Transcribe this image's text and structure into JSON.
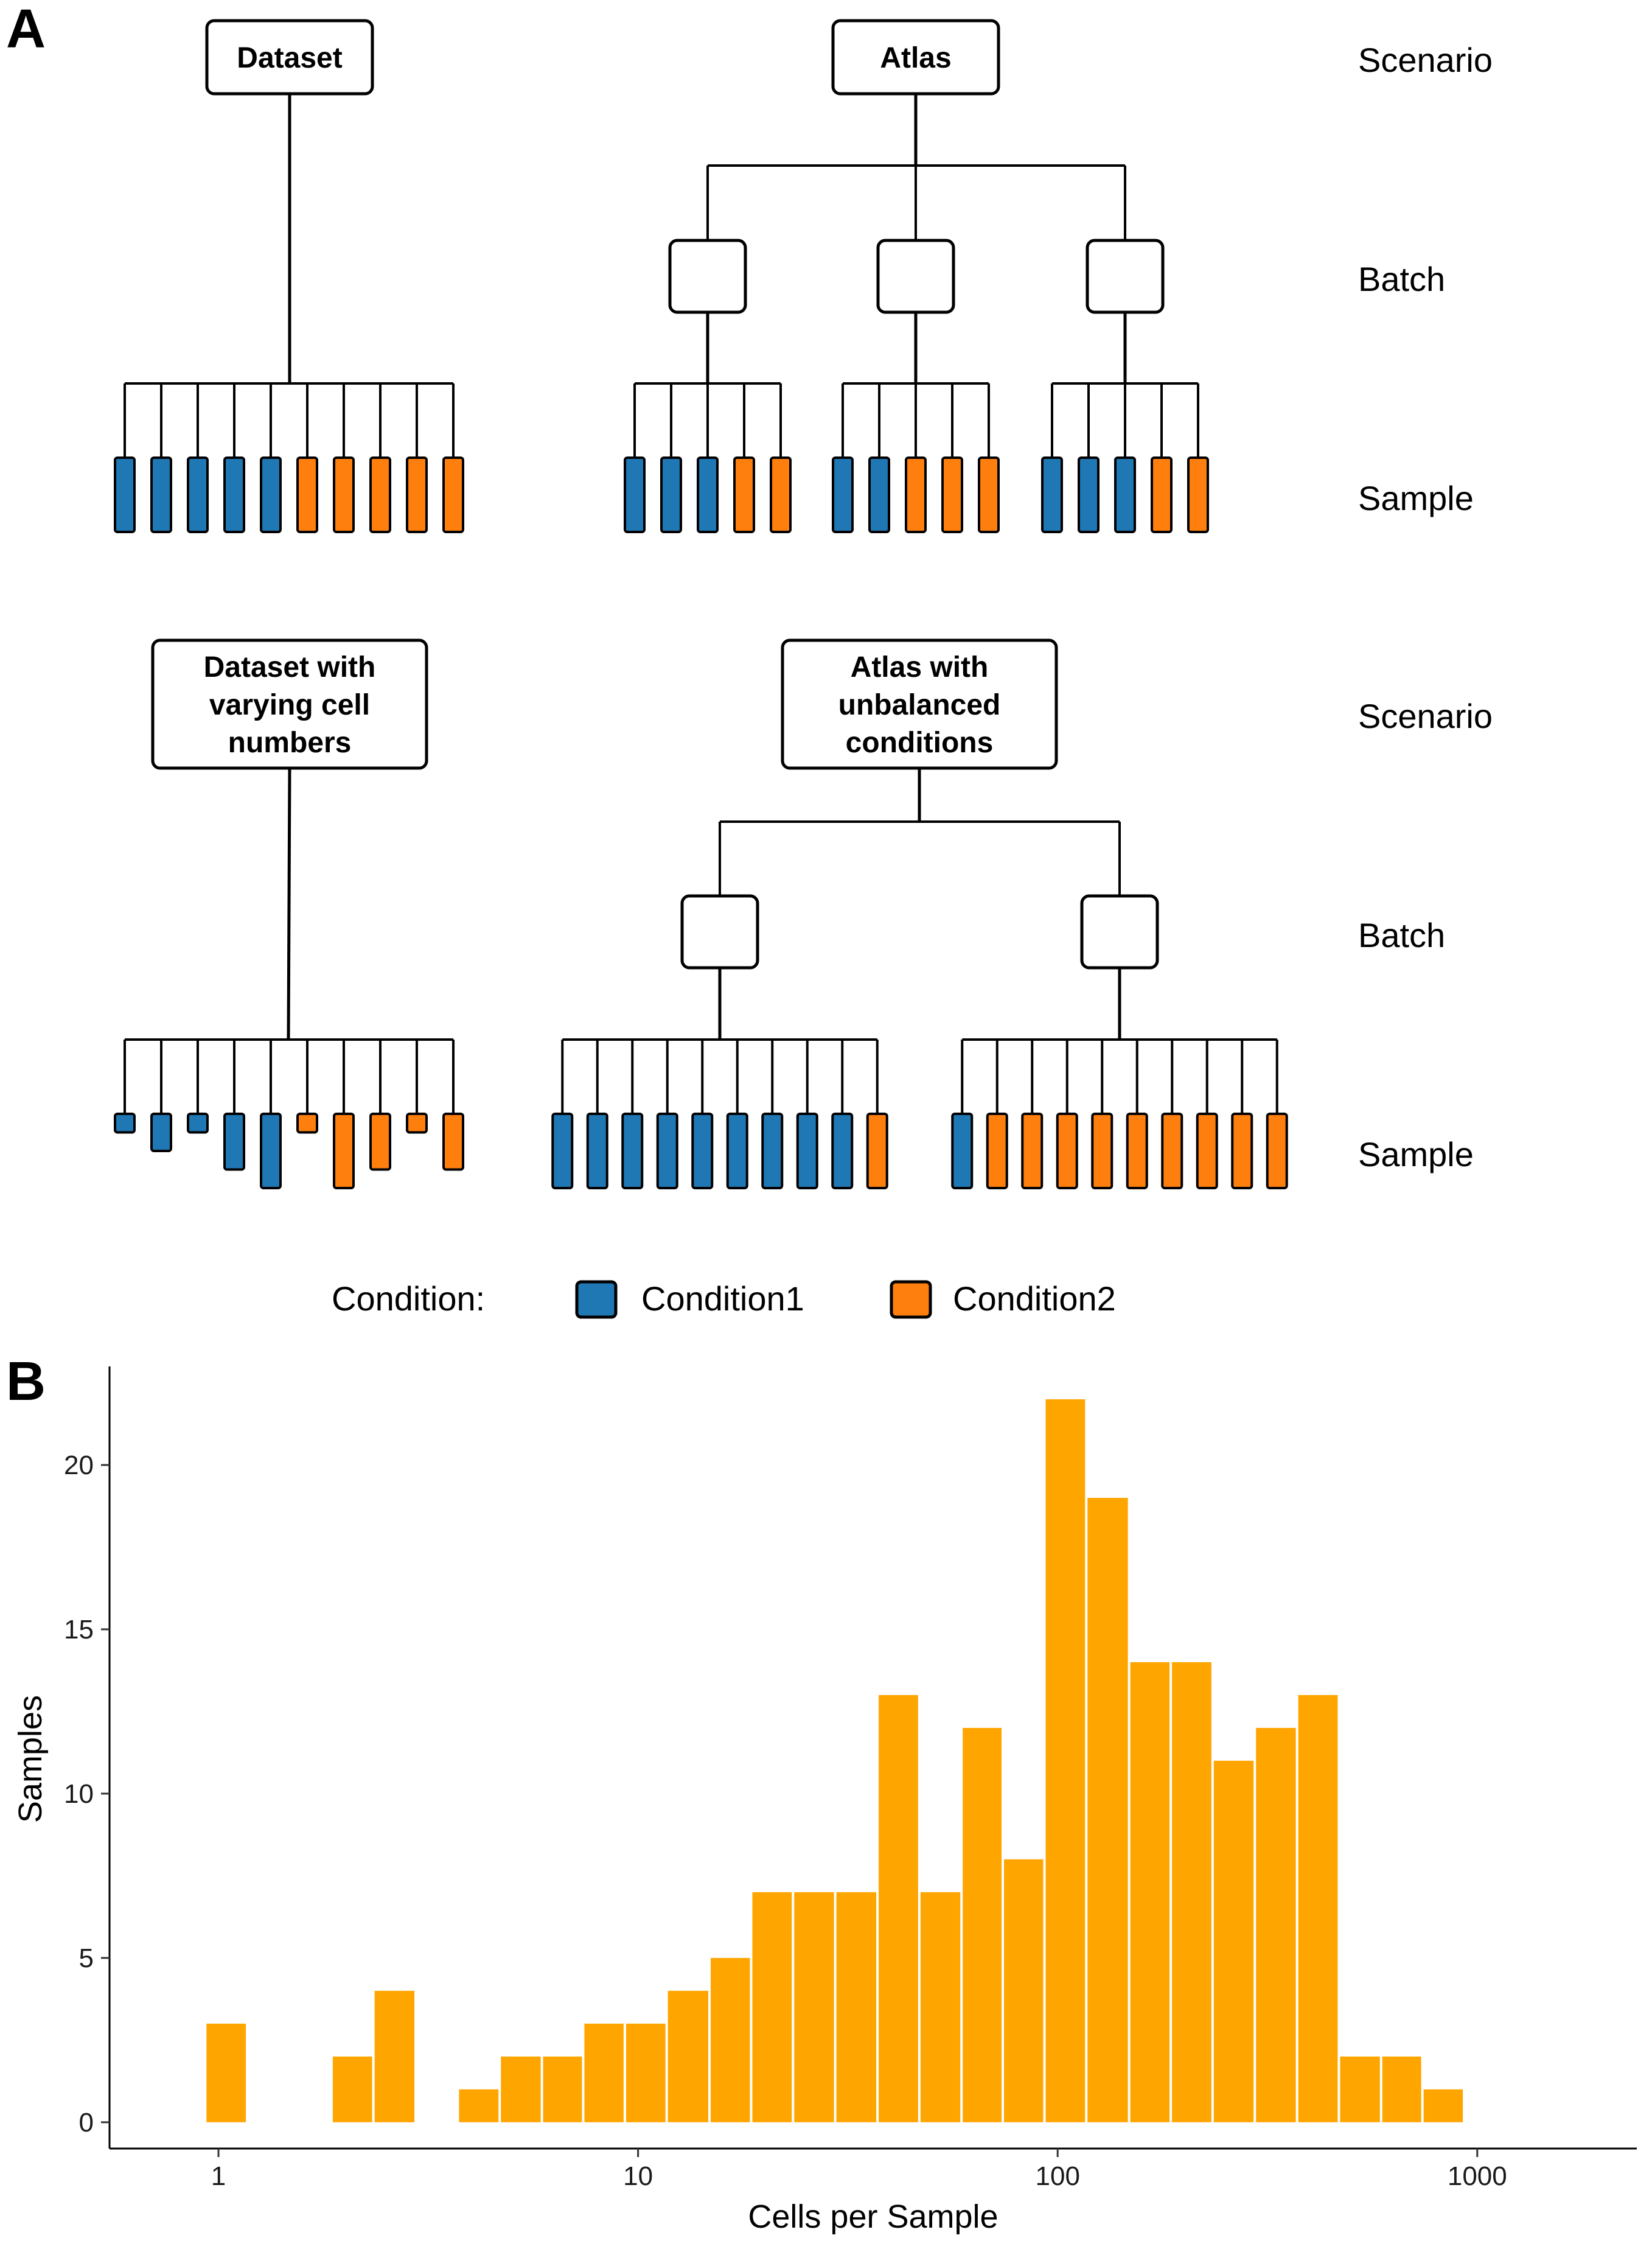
{
  "panel_a": {
    "letter": "A",
    "row_labels": {
      "scenario": "Scenario",
      "batch": "Batch",
      "sample": "Sample"
    },
    "scenarios": [
      {
        "label_lines": [
          "Dataset"
        ],
        "batches": 0,
        "samples": [
          {
            "condition": 1
          },
          {
            "condition": 1
          },
          {
            "condition": 1
          },
          {
            "condition": 1
          },
          {
            "condition": 1
          },
          {
            "condition": 2
          },
          {
            "condition": 2
          },
          {
            "condition": 2
          },
          {
            "condition": 2
          },
          {
            "condition": 2
          }
        ]
      },
      {
        "label_lines": [
          "Atlas"
        ],
        "batches": 3,
        "batch_samples": [
          [
            1,
            1,
            1,
            2,
            2
          ],
          [
            1,
            1,
            2,
            2,
            2
          ],
          [
            1,
            1,
            1,
            2,
            2
          ]
        ]
      },
      {
        "label_lines": [
          "Dataset with",
          "varying cell",
          "numbers"
        ],
        "batches": 0,
        "samples": [
          {
            "condition": 1,
            "relative_cells": 0.25
          },
          {
            "condition": 1,
            "relative_cells": 0.5
          },
          {
            "condition": 1,
            "relative_cells": 0.25
          },
          {
            "condition": 1,
            "relative_cells": 0.75
          },
          {
            "condition": 1,
            "relative_cells": 1.0
          },
          {
            "condition": 2,
            "relative_cells": 0.25
          },
          {
            "condition": 2,
            "relative_cells": 1.0
          },
          {
            "condition": 2,
            "relative_cells": 0.75
          },
          {
            "condition": 2,
            "relative_cells": 0.25
          },
          {
            "condition": 2,
            "relative_cells": 0.75
          }
        ]
      },
      {
        "label_lines": [
          "Atlas with",
          "unbalanced",
          "conditions"
        ],
        "batches": 2,
        "batch_samples": [
          [
            1,
            1,
            1,
            1,
            1,
            1,
            1,
            1,
            1,
            2
          ],
          [
            1,
            2,
            2,
            2,
            2,
            2,
            2,
            2,
            2,
            2
          ]
        ]
      }
    ],
    "legend": {
      "title": "Condition:",
      "items": [
        {
          "label": "Condition1",
          "color": "#1f77b4"
        },
        {
          "label": "Condition2",
          "color": "#ff7f0e"
        }
      ]
    }
  },
  "panel_b": {
    "letter": "B",
    "chart_data": {
      "type": "bar",
      "subtype": "histogram",
      "xlabel": "Cells per Sample",
      "ylabel": "Samples",
      "x_scale": "log10",
      "x_ticks": [
        1,
        10,
        100,
        1000
      ],
      "x_tick_labels": [
        "1",
        "10",
        "100",
        "1000"
      ],
      "xlim": [
        0.55,
        2400
      ],
      "y_ticks": [
        0,
        5,
        10,
        15,
        20
      ],
      "ylim": [
        -0.8,
        23
      ],
      "bar_color": "#ffa500",
      "grid": false,
      "bins": [
        {
          "x_start": 0.93,
          "x_end": 1.17,
          "count": 3
        },
        {
          "x_start": 1.17,
          "x_end": 1.47,
          "count": 0
        },
        {
          "x_start": 1.47,
          "x_end": 1.86,
          "count": 0
        },
        {
          "x_start": 1.86,
          "x_end": 2.34,
          "count": 2
        },
        {
          "x_start": 2.34,
          "x_end": 2.95,
          "count": 4
        },
        {
          "x_start": 2.95,
          "x_end": 3.72,
          "count": 0
        },
        {
          "x_start": 3.72,
          "x_end": 4.68,
          "count": 1
        },
        {
          "x_start": 4.68,
          "x_end": 5.9,
          "count": 2
        },
        {
          "x_start": 5.9,
          "x_end": 7.4,
          "count": 2
        },
        {
          "x_start": 7.4,
          "x_end": 9.3,
          "count": 3
        },
        {
          "x_start": 9.3,
          "x_end": 11.7,
          "count": 3
        },
        {
          "x_start": 11.7,
          "x_end": 14.8,
          "count": 4
        },
        {
          "x_start": 14.8,
          "x_end": 18.6,
          "count": 5
        },
        {
          "x_start": 18.6,
          "x_end": 23.4,
          "count": 7
        },
        {
          "x_start": 23.4,
          "x_end": 29.5,
          "count": 7
        },
        {
          "x_start": 29.5,
          "x_end": 37.2,
          "count": 7
        },
        {
          "x_start": 37.2,
          "x_end": 46.8,
          "count": 13
        },
        {
          "x_start": 46.8,
          "x_end": 59,
          "count": 7
        },
        {
          "x_start": 59,
          "x_end": 74,
          "count": 12
        },
        {
          "x_start": 74,
          "x_end": 93,
          "count": 8
        },
        {
          "x_start": 93,
          "x_end": 117,
          "count": 22
        },
        {
          "x_start": 117,
          "x_end": 148,
          "count": 19
        },
        {
          "x_start": 148,
          "x_end": 186,
          "count": 14
        },
        {
          "x_start": 186,
          "x_end": 234,
          "count": 14
        },
        {
          "x_start": 234,
          "x_end": 295,
          "count": 11
        },
        {
          "x_start": 295,
          "x_end": 372,
          "count": 12
        },
        {
          "x_start": 372,
          "x_end": 468,
          "count": 13
        },
        {
          "x_start": 468,
          "x_end": 590,
          "count": 2
        },
        {
          "x_start": 590,
          "x_end": 740,
          "count": 2
        },
        {
          "x_start": 740,
          "x_end": 930,
          "count": 1
        }
      ]
    }
  }
}
